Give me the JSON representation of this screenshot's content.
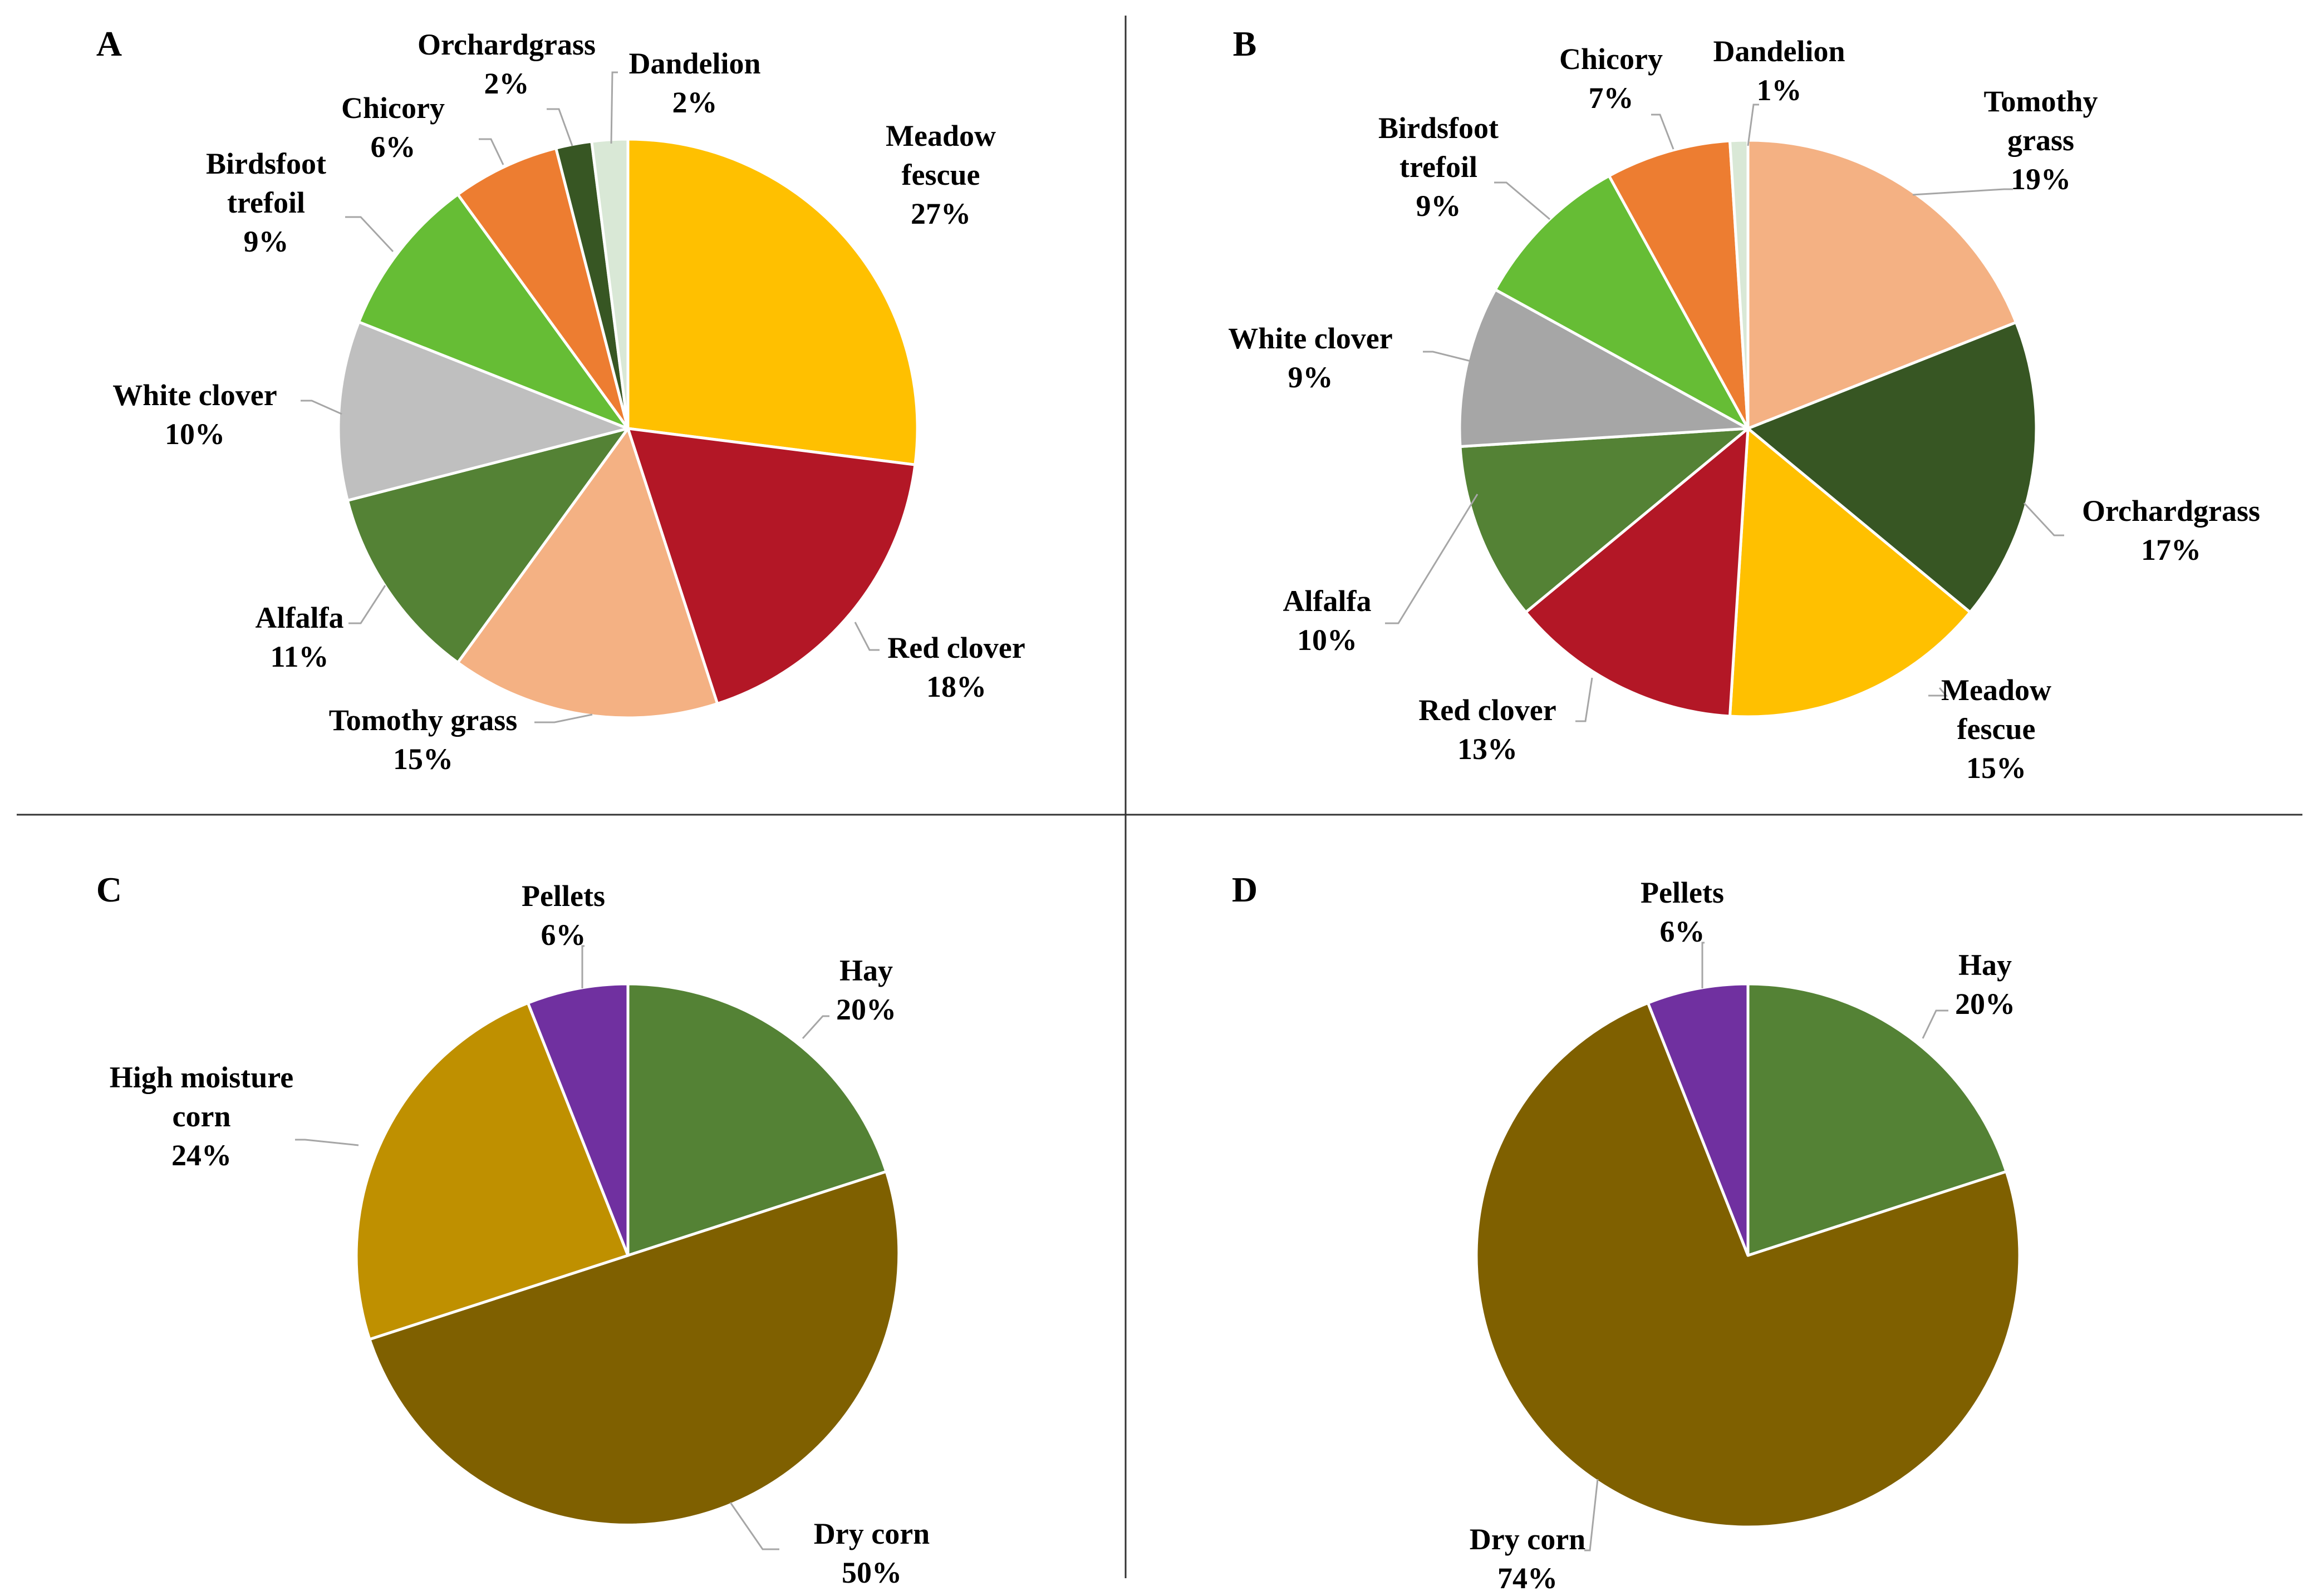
{
  "chart_data": [
    {
      "type": "pie",
      "panel_label": "A",
      "slices": [
        {
          "label": [
            "Meadow",
            "fescue"
          ],
          "pct_label": "27%",
          "value": 27,
          "color": "#FFC000"
        },
        {
          "label": [
            "Red clover"
          ],
          "pct_label": "18%",
          "value": 18,
          "color": "#B31726"
        },
        {
          "label": [
            "Tomothy grass"
          ],
          "pct_label": "15%",
          "value": 15,
          "color": "#F4B183"
        },
        {
          "label": [
            "Alfalfa"
          ],
          "pct_label": "11%",
          "value": 11,
          "color": "#548235"
        },
        {
          "label": [
            "White clover"
          ],
          "pct_label": "10%",
          "value": 10,
          "color": "#BFBFBF"
        },
        {
          "label": [
            "Birdsfoot",
            "trefoil"
          ],
          "pct_label": "9%",
          "value": 9,
          "color": "#66BD35"
        },
        {
          "label": [
            "Chicory"
          ],
          "pct_label": "6%",
          "value": 6,
          "color": "#ED7D31"
        },
        {
          "label": [
            "Orchardgrass"
          ],
          "pct_label": "2%",
          "value": 2,
          "color": "#375623"
        },
        {
          "label": [
            "Dandelion"
          ],
          "pct_label": "2%",
          "value": 2,
          "color": "#D9E8D6"
        }
      ]
    },
    {
      "type": "pie",
      "panel_label": "B",
      "slices": [
        {
          "label": [
            "Tomothy",
            "grass"
          ],
          "pct_label": "19%",
          "value": 19,
          "color": "#F4B183"
        },
        {
          "label": [
            "Orchardgrass"
          ],
          "pct_label": "17%",
          "value": 17,
          "color": "#375623"
        },
        {
          "label": [
            "Meadow",
            "fescue"
          ],
          "pct_label": "15%",
          "value": 15,
          "color": "#FFC000"
        },
        {
          "label": [
            "Red clover"
          ],
          "pct_label": "13%",
          "value": 13,
          "color": "#B31726"
        },
        {
          "label": [
            "Alfalfa"
          ],
          "pct_label": "10%",
          "value": 10,
          "color": "#548235"
        },
        {
          "label": [
            "White clover"
          ],
          "pct_label": "9%",
          "value": 9,
          "color": "#A6A6A6"
        },
        {
          "label": [
            "Birdsfoot",
            "trefoil"
          ],
          "pct_label": "9%",
          "value": 9,
          "color": "#66BD35"
        },
        {
          "label": [
            "Chicory"
          ],
          "pct_label": "7%",
          "value": 7,
          "color": "#ED7D31"
        },
        {
          "label": [
            "Dandelion"
          ],
          "pct_label": "1%",
          "value": 1,
          "color": "#D9E8D6"
        }
      ]
    },
    {
      "type": "pie",
      "panel_label": "C",
      "slices": [
        {
          "label": [
            "Hay"
          ],
          "pct_label": "20%",
          "value": 20,
          "color": "#548235"
        },
        {
          "label": [
            "Dry corn"
          ],
          "pct_label": "50%",
          "value": 50,
          "color": "#7F6000"
        },
        {
          "label": [
            "High moisture",
            "corn"
          ],
          "pct_label": "24%",
          "value": 24,
          "color": "#BF9000"
        },
        {
          "label": [
            "Pellets"
          ],
          "pct_label": "6%",
          "value": 6,
          "color": "#7030A0"
        }
      ]
    },
    {
      "type": "pie",
      "panel_label": "D",
      "slices": [
        {
          "label": [
            "Hay"
          ],
          "pct_label": "20%",
          "value": 20,
          "color": "#548235"
        },
        {
          "label": [
            "Dry corn"
          ],
          "pct_label": "74%",
          "value": 74,
          "color": "#7F6000"
        },
        {
          "label": [
            "Pellets"
          ],
          "pct_label": "6%",
          "value": 6,
          "color": "#7030A0"
        }
      ]
    }
  ]
}
